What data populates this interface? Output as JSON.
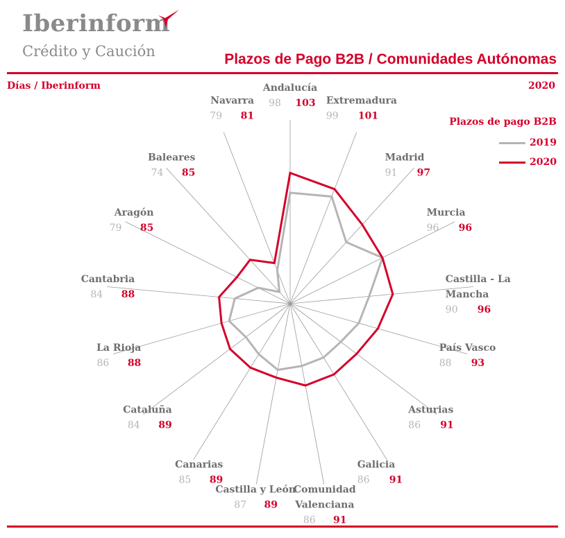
{
  "header": {
    "logo_name": "Iberinform",
    "logo_sub": "Crédito y Caución",
    "title": "Plazos de Pago B2B / Comunidades Autónomas",
    "subtitle": "Días / Iberinform",
    "year": "2020"
  },
  "colors": {
    "accent": "#d4002a",
    "grey": "#b5b5b5",
    "label": "#6e6e6e"
  },
  "chart_data": {
    "type": "radar",
    "legend_title": "Plazos de pago B2B",
    "legend_position": "top-right",
    "categories": [
      "Andalucía",
      "Extremadura",
      "Madrid",
      "Murcia",
      "Castilla - La Mancha",
      "País Vasco",
      "Asturias",
      "Galicia",
      "Comunidad Valenciana",
      "Castilla y León",
      "Canarias",
      "Cataluña",
      "La Rioja",
      "Cantabria",
      "Aragón",
      "Baleares",
      "Navarra"
    ],
    "series": [
      {
        "name": "2019",
        "values": [
          98,
          99,
          91,
          96,
          90,
          88,
          86,
          86,
          86,
          87,
          85,
          84,
          86,
          84,
          79,
          74,
          79
        ]
      },
      {
        "name": "2020",
        "values": [
          103,
          101,
          97,
          96,
          96,
          93,
          91,
          91,
          91,
          89,
          89,
          89,
          88,
          88,
          85,
          85,
          81
        ]
      }
    ],
    "rlim": [
      70,
      105
    ]
  }
}
